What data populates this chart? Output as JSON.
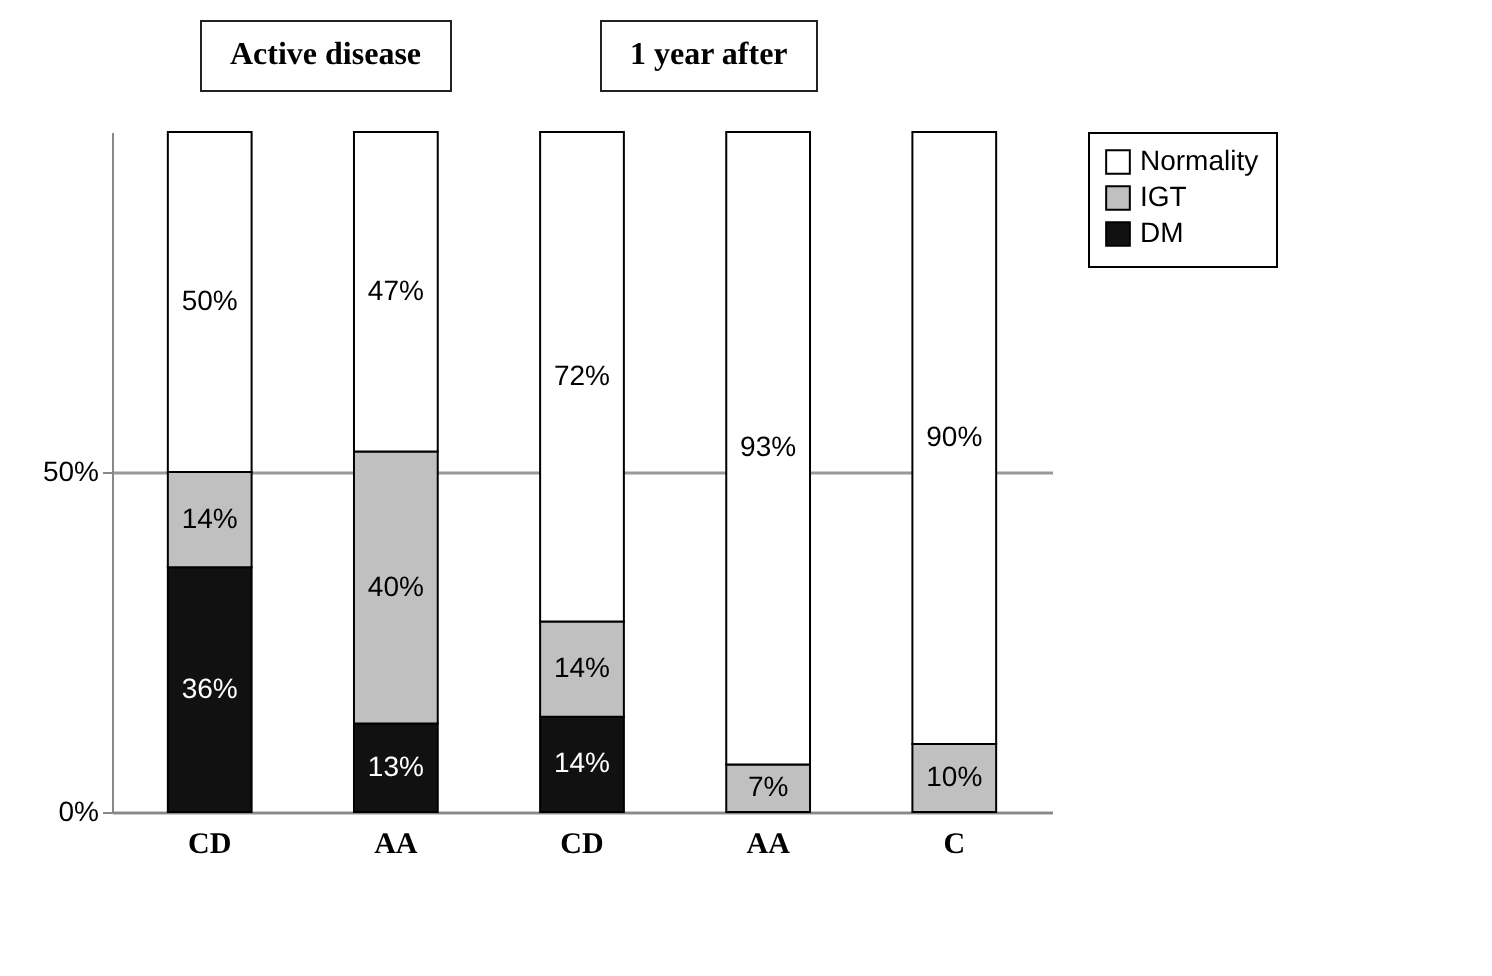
{
  "chart_data": {
    "type": "bar",
    "stacked": true,
    "categories": [
      "CD",
      "AA",
      "CD",
      "AA",
      "C"
    ],
    "series": [
      {
        "name": "DM",
        "color": "#111111",
        "values": [
          36,
          13,
          14,
          0,
          0
        ],
        "value_labels": [
          "36%",
          "13%",
          "14%",
          null,
          null
        ]
      },
      {
        "name": "IGT",
        "color": "#c0c0c0",
        "values": [
          14,
          40,
          14,
          7,
          10
        ],
        "value_labels": [
          "14%",
          "40%",
          "14%",
          "7%",
          "10%"
        ]
      },
      {
        "name": "Normality",
        "color": "#ffffff",
        "values": [
          50,
          47,
          72,
          93,
          90
        ],
        "value_labels": [
          "50%",
          "47%",
          "72%",
          "93%",
          "90%"
        ]
      }
    ],
    "ylim": [
      0,
      100
    ],
    "yticks": [
      {
        "value": 0,
        "label": "0%"
      },
      {
        "value": 50,
        "label": "50%"
      }
    ],
    "grid": "y",
    "legend": "right",
    "annotations": [
      "Active disease",
      "1 year after"
    ]
  }
}
